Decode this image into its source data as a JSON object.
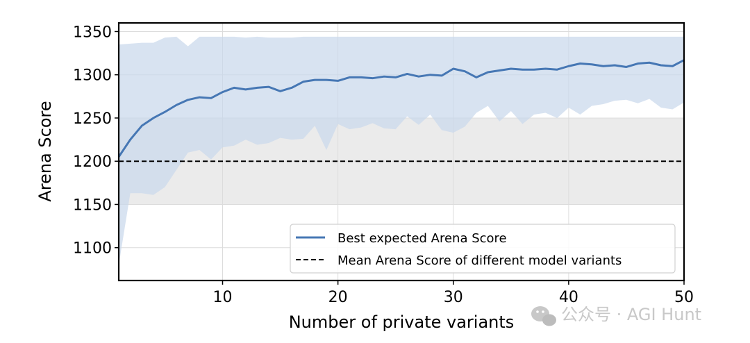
{
  "chart_data": {
    "type": "line",
    "xlabel": "Number of private variants",
    "ylabel": "Arena Score",
    "xlim": [
      1,
      50
    ],
    "ylim": [
      1062,
      1360
    ],
    "xticks": [
      10,
      20,
      30,
      40,
      50
    ],
    "yticks": [
      1100,
      1150,
      1200,
      1250,
      1300,
      1350
    ],
    "grid": true,
    "legend_position": "lower-right",
    "reference_band": {
      "ymin": 1150,
      "ymax": 1250,
      "color": "#ebebeb"
    },
    "reference_line": {
      "name": "Mean Arena Score of different model variants",
      "y": 1200,
      "color": "#000000",
      "style": "dashed"
    },
    "series": [
      {
        "name": "Best expected Arena Score",
        "color": "#4677b4",
        "band_color": "#c9d8ec",
        "x": [
          1,
          2,
          3,
          4,
          5,
          6,
          7,
          8,
          9,
          10,
          11,
          12,
          13,
          14,
          15,
          16,
          17,
          18,
          19,
          20,
          21,
          22,
          23,
          24,
          25,
          26,
          27,
          28,
          29,
          30,
          31,
          32,
          33,
          34,
          35,
          36,
          37,
          38,
          39,
          40,
          41,
          42,
          43,
          44,
          45,
          46,
          47,
          48,
          49,
          50
        ],
        "y": [
          1205,
          1225,
          1241,
          1250,
          1257,
          1265,
          1271,
          1274,
          1273,
          1280,
          1285,
          1283,
          1285,
          1286,
          1281,
          1285,
          1292,
          1294,
          1294,
          1293,
          1297,
          1297,
          1296,
          1298,
          1297,
          1301,
          1298,
          1300,
          1299,
          1307,
          1304,
          1297,
          1303,
          1305,
          1307,
          1306,
          1306,
          1307,
          1306,
          1310,
          1313,
          1312,
          1310,
          1311,
          1309,
          1313,
          1314,
          1311,
          1310,
          1317
        ],
        "upper": [
          1335,
          1336,
          1337,
          1337,
          1343,
          1344,
          1333,
          1344,
          1344,
          1344,
          1344,
          1343,
          1344,
          1343,
          1343,
          1343,
          1344,
          1344,
          1344,
          1344,
          1344,
          1344,
          1344,
          1344,
          1344,
          1344,
          1344,
          1344,
          1344,
          1344,
          1344,
          1344,
          1344,
          1344,
          1344,
          1344,
          1344,
          1344,
          1344,
          1344,
          1344,
          1344,
          1344,
          1344,
          1344,
          1344,
          1344,
          1344,
          1344,
          1344
        ],
        "lower": [
          1080,
          1163,
          1163,
          1161,
          1170,
          1190,
          1210,
          1213,
          1202,
          1216,
          1218,
          1225,
          1219,
          1221,
          1227,
          1225,
          1226,
          1241,
          1213,
          1243,
          1237,
          1239,
          1244,
          1238,
          1237,
          1252,
          1242,
          1254,
          1236,
          1233,
          1240,
          1256,
          1264,
          1246,
          1258,
          1243,
          1254,
          1256,
          1250,
          1262,
          1254,
          1264,
          1266,
          1270,
          1271,
          1267,
          1272,
          1262,
          1260,
          1268
        ]
      }
    ]
  },
  "watermark": {
    "text": "公众号 · AGI Hunt",
    "icon": "wechat-icon"
  }
}
